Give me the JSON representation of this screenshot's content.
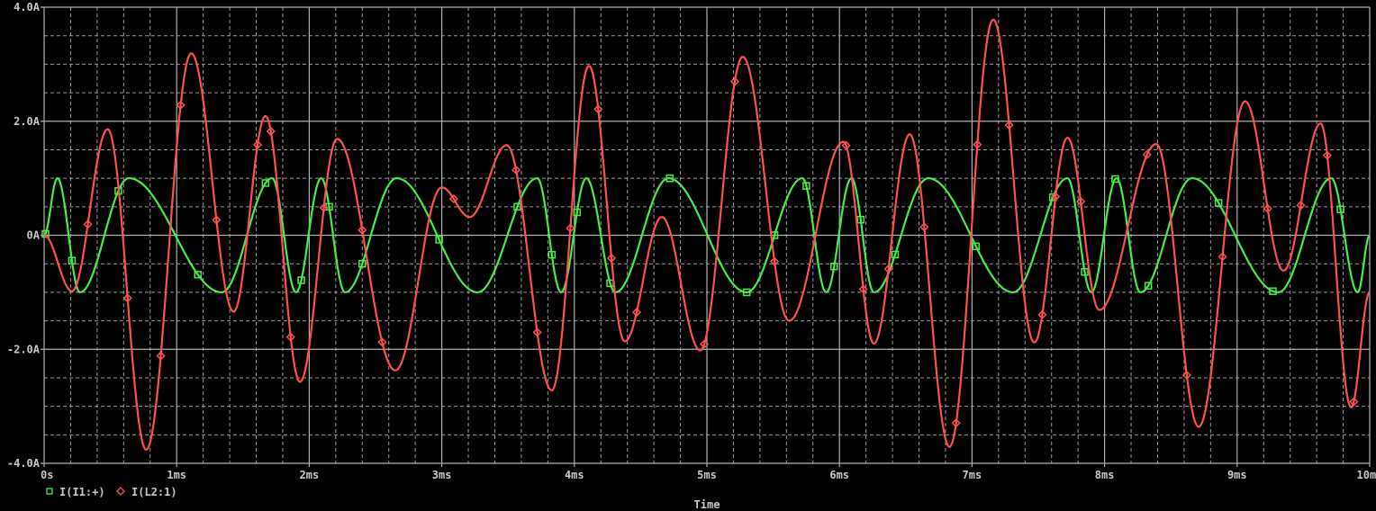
{
  "chart_data": {
    "type": "line",
    "xlabel": "Time",
    "ylabel": "",
    "xlim": [
      0,
      10
    ],
    "ylim": [
      -4,
      4
    ],
    "x_unit": "ms",
    "y_unit": "A",
    "grid": true,
    "legend_position": "bottom-left",
    "x_ticks": [
      {
        "value": 0,
        "label": "0s"
      },
      {
        "value": 1,
        "label": "1ms"
      },
      {
        "value": 2,
        "label": "2ms"
      },
      {
        "value": 3,
        "label": "3ms"
      },
      {
        "value": 4,
        "label": "4ms"
      },
      {
        "value": 5,
        "label": "5ms"
      },
      {
        "value": 6,
        "label": "6ms"
      },
      {
        "value": 7,
        "label": "7ms"
      },
      {
        "value": 8,
        "label": "8ms"
      },
      {
        "value": 9,
        "label": "9ms"
      },
      {
        "value": 10,
        "label": "10ms"
      }
    ],
    "y_ticks": [
      {
        "value": 4,
        "label": "4.0A"
      },
      {
        "value": 2,
        "label": "2.0A"
      },
      {
        "value": 0,
        "label": "0A"
      },
      {
        "value": -2,
        "label": "-2.0A"
      },
      {
        "value": -4,
        "label": "-4.0A"
      }
    ],
    "series": [
      {
        "name": "I(I1:+)",
        "color": "#44ee44",
        "marker": "square",
        "points": [
          [
            0,
            0
          ],
          [
            0.1,
            1
          ],
          [
            0.27,
            -1
          ],
          [
            0.64,
            1
          ],
          [
            1.34,
            -1
          ],
          [
            1.72,
            1
          ],
          [
            1.9,
            -1
          ],
          [
            2.09,
            1
          ],
          [
            2.27,
            -1
          ],
          [
            2.66,
            1
          ],
          [
            3.27,
            -1
          ],
          [
            3.72,
            1
          ],
          [
            3.9,
            -1
          ],
          [
            4.09,
            1
          ],
          [
            4.31,
            -1
          ],
          [
            4.71,
            1
          ],
          [
            5.3,
            -1
          ],
          [
            5.72,
            1
          ],
          [
            5.9,
            -1
          ],
          [
            6.09,
            1
          ],
          [
            6.26,
            -1
          ],
          [
            6.67,
            1
          ],
          [
            7.31,
            -1
          ],
          [
            7.72,
            1
          ],
          [
            7.9,
            -1
          ],
          [
            8.09,
            1
          ],
          [
            8.27,
            -1
          ],
          [
            8.66,
            1
          ],
          [
            9.31,
            -1
          ],
          [
            9.71,
            1
          ],
          [
            9.91,
            -1
          ],
          [
            10,
            0
          ]
        ],
        "marker_times": [
          0.01,
          0.21,
          0.56,
          1.16,
          1.67,
          1.94,
          2.15,
          2.4,
          2.98,
          3.57,
          3.83,
          4.02,
          4.27,
          4.72,
          5.3,
          5.51,
          5.75,
          5.96,
          6.16,
          6.42,
          7.03,
          7.61,
          7.85,
          8.08,
          8.33,
          8.86,
          9.27,
          9.78
        ]
      },
      {
        "name": "I(L2:1)",
        "color": "#ff5050",
        "marker": "diamond",
        "points": [
          [
            0,
            0
          ],
          [
            0.21,
            -0.98
          ],
          [
            0.48,
            1.86
          ],
          [
            0.77,
            -3.76
          ],
          [
            1.11,
            3.19
          ],
          [
            1.43,
            -1.34
          ],
          [
            1.67,
            2.09
          ],
          [
            1.93,
            -2.57
          ],
          [
            2.21,
            1.69
          ],
          [
            2.65,
            -2.37
          ],
          [
            3.0,
            0.84
          ],
          [
            3.21,
            0.32
          ],
          [
            3.49,
            1.58
          ],
          [
            3.83,
            -2.72
          ],
          [
            4.11,
            2.97
          ],
          [
            4.38,
            -1.86
          ],
          [
            4.66,
            0.32
          ],
          [
            4.95,
            -2.02
          ],
          [
            5.27,
            3.13
          ],
          [
            5.62,
            -1.5
          ],
          [
            6.03,
            1.64
          ],
          [
            6.26,
            -1.9
          ],
          [
            6.53,
            1.77
          ],
          [
            6.83,
            -3.71
          ],
          [
            7.16,
            3.78
          ],
          [
            7.47,
            -1.88
          ],
          [
            7.72,
            1.71
          ],
          [
            7.96,
            -1.31
          ],
          [
            8.39,
            1.6
          ],
          [
            8.71,
            -3.36
          ],
          [
            9.06,
            2.35
          ],
          [
            9.35,
            -0.62
          ],
          [
            9.63,
            1.96
          ],
          [
            9.86,
            -3.02
          ],
          [
            10,
            -1.0
          ]
        ],
        "marker_times": [
          0.33,
          0.63,
          0.88,
          1.03,
          1.3,
          1.61,
          1.71,
          1.86,
          2.11,
          2.4,
          2.55,
          3.09,
          3.56,
          3.72,
          3.97,
          4.18,
          4.28,
          4.47,
          4.98,
          5.21,
          5.51,
          6.05,
          6.18,
          6.37,
          6.64,
          6.88,
          7.04,
          7.28,
          7.53,
          7.63,
          7.82,
          8.32,
          8.62,
          8.89,
          9.23,
          9.48,
          9.68,
          9.88
        ]
      }
    ]
  }
}
